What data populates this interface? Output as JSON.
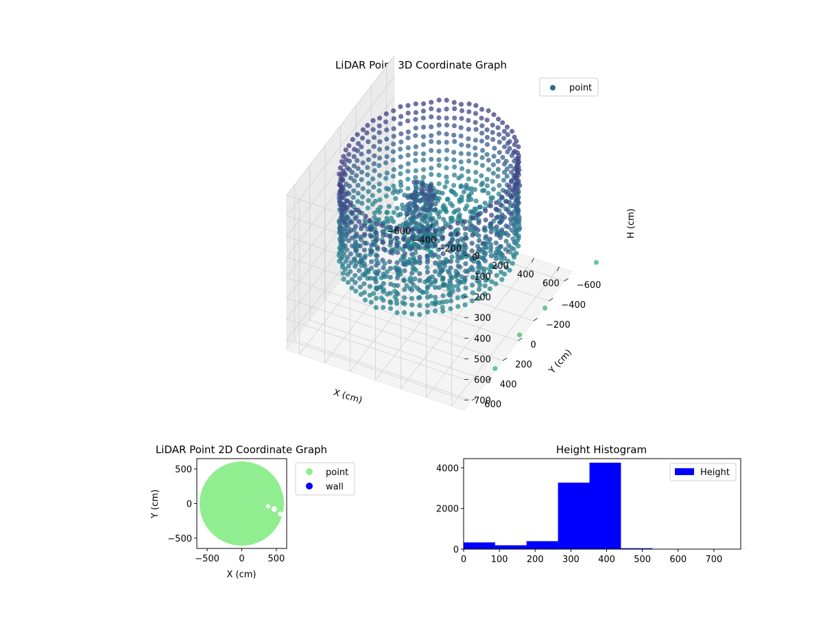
{
  "chart_data": [
    {
      "type": "scatter3d",
      "title": "LiDAR Point 3D Coordinate Graph",
      "xlabel": "X (cm)",
      "ylabel": "Y (cm)",
      "zlabel": "H (cm)",
      "xlim": [
        -700,
        700
      ],
      "ylim": [
        -700,
        700
      ],
      "zlim": [
        0,
        750
      ],
      "z_inverted": true,
      "xticks": [
        "−600",
        "−400",
        "−200",
        "0",
        "200",
        "400",
        "600"
      ],
      "yticks": [
        "−600",
        "−400",
        "−200",
        "0",
        "200",
        "400",
        "600"
      ],
      "zticks": [
        "0",
        "100",
        "200",
        "300",
        "400",
        "500",
        "600",
        "700"
      ],
      "grid": true,
      "legend": "top-right",
      "series": [
        {
          "name": "point",
          "colormap": "viridis"
        }
      ],
      "ring": {
        "radius": 600,
        "height_top": 50,
        "height_bottom": 450
      },
      "center_cluster": {
        "x": [
          -150,
          50
        ],
        "y": [
          -50,
          100
        ],
        "h": [
          150,
          450
        ]
      },
      "floor_cloud": {
        "x_range": [
          -500,
          500
        ],
        "y_range": [
          -450,
          500
        ],
        "h": [
          360,
          480
        ]
      },
      "outliers": [
        {
          "x": 320,
          "y": -250,
          "h": 600
        },
        {
          "x": 700,
          "y": 300,
          "h": 740
        },
        {
          "x": 650,
          "y": -100,
          "h": 780
        },
        {
          "x": 700,
          "y": -350,
          "h": 760
        },
        {
          "x": 820,
          "y": -820,
          "h": 740
        }
      ]
    },
    {
      "type": "scatter",
      "title": "LiDAR Point 2D Coordinate Graph",
      "xlabel": "X (cm)",
      "ylabel": "Y (cm)",
      "xlim": [
        -650,
        650
      ],
      "ylim": [
        -650,
        650
      ],
      "xticks": [
        -500,
        0,
        500
      ],
      "yticks": [
        500,
        0,
        -500
      ],
      "legend": "outside-right",
      "series": [
        {
          "name": "point",
          "color": "#90ee90"
        },
        {
          "name": "wall",
          "color": "#0000ff"
        }
      ],
      "disc_radius": 610
    },
    {
      "type": "bar",
      "title": "Height Histogram",
      "xlim": [
        0,
        775
      ],
      "ylim": [
        0,
        4450
      ],
      "xticks": [
        0,
        100,
        200,
        300,
        400,
        500,
        600,
        700
      ],
      "yticks": [
        0,
        2000,
        4000
      ],
      "legend": "top-right",
      "series": [
        {
          "name": "Height",
          "color": "#0000ff"
        }
      ],
      "bin_edges": [
        0,
        88,
        176,
        264,
        352,
        440,
        528,
        616,
        704,
        792
      ],
      "values": [
        330,
        190,
        390,
        3270,
        4250,
        45,
        8,
        3,
        2
      ]
    }
  ]
}
